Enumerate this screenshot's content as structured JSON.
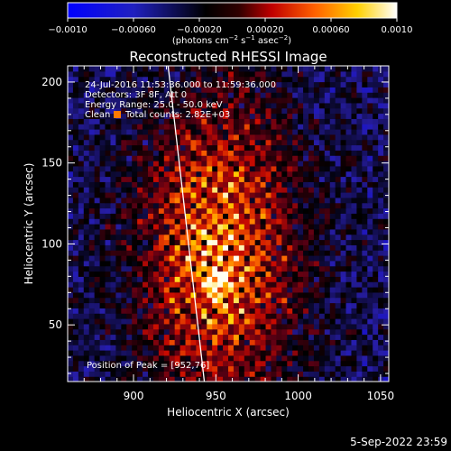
{
  "colorbar": {
    "ticks": [
      "−0.0010",
      "−0.00060",
      "−0.00020",
      "0.00020",
      "0.00060",
      "0.0010"
    ],
    "unit_label": "(photons cm",
    "unit_exp1": "−2",
    "unit_mid1": " s",
    "unit_exp2": "−1",
    "unit_mid2": " asec",
    "unit_exp3": "−2",
    "unit_tail": ")"
  },
  "chart_data": {
    "type": "heatmap",
    "title": "Reconstructed RHESSI Image",
    "xlabel": "Heliocentric X (arcsec)",
    "ylabel": "Heliocentric Y (arcsec)",
    "xlim": [
      860,
      1055
    ],
    "ylim": [
      15,
      210
    ],
    "xticks": [
      900,
      950,
      1000,
      1050
    ],
    "yticks": [
      50,
      100,
      150,
      200
    ],
    "value_range": [
      -0.001,
      0.001
    ],
    "colormap": [
      "#0000ff",
      "#000000",
      "#ff0000",
      "#ffff00",
      "#ffffff"
    ],
    "limb_line": [
      [
        921,
        210
      ],
      [
        943,
        15
      ]
    ],
    "peak_marker": [
      952,
      76
    ],
    "annotations": [
      "24-Jul-2016 11:53:36.000 to 11:59:36.000",
      "Detectors: 3F 8F, Att 0",
      "Energy Range: 25.0 - 50.0 keV",
      "Clean",
      "Total counts: 2.82E+03",
      "Position of Peak = [952,76]"
    ]
  },
  "footer": {
    "timestamp": "5-Sep-2022 23:59"
  }
}
